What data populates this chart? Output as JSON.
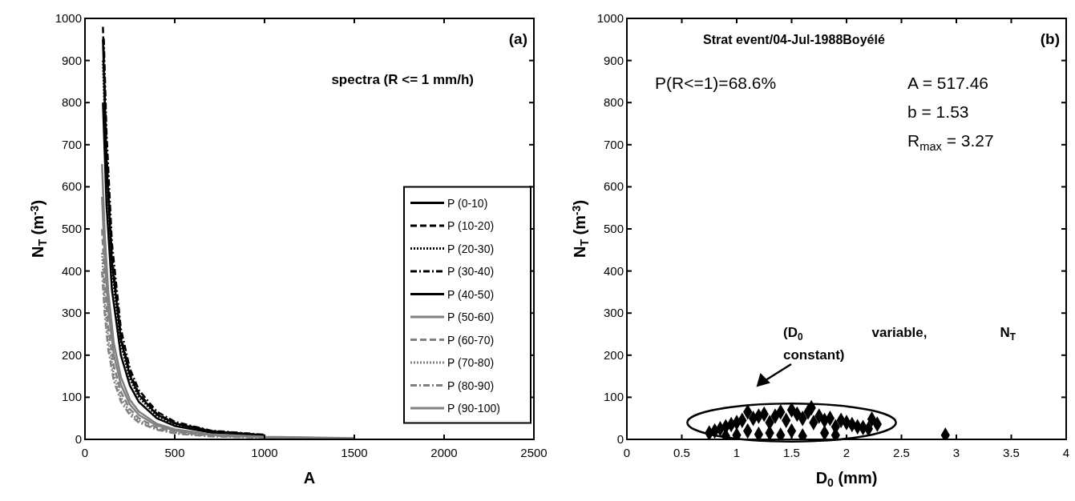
{
  "chart_data": [
    {
      "type": "line",
      "title": "spectra (R <= 1 mm/h)",
      "xlabel": "A",
      "ylabel": "N$_{T}$ (m$^{-3}$)",
      "annotations": [
        "(a)"
      ],
      "xlim": [
        0,
        2500
      ],
      "xticks": [
        0,
        500,
        1000,
        1500,
        2000,
        2500
      ],
      "ylim": [
        0,
        1000
      ],
      "yticks": [
        0,
        100,
        200,
        300,
        400,
        500,
        600,
        700,
        800,
        900,
        1000
      ],
      "grid": false,
      "legend": "right",
      "series": [
        {
          "name": "P (0-10)",
          "color": "#000000",
          "line_style": "solid",
          "x": [
            100,
            120,
            150,
            200,
            250,
            300,
            400,
            500,
            700,
            1000
          ],
          "values": [
            950,
            660,
            422,
            238,
            152,
            106,
            59,
            38,
            19,
            10
          ]
        },
        {
          "name": "P (10-20)",
          "color": "#000000",
          "line_style": "dashed",
          "x": [
            100,
            120,
            150,
            200,
            250,
            300,
            400,
            500,
            700,
            1000
          ],
          "values": [
            980,
            681,
            436,
            245,
            157,
            109,
            61,
            39,
            20,
            10
          ]
        },
        {
          "name": "P (20-30)",
          "color": "#000000",
          "line_style": "dotted",
          "x": [
            100,
            120,
            150,
            200,
            250,
            300,
            400,
            500,
            700,
            1000
          ],
          "values": [
            900,
            625,
            400,
            225,
            144,
            100,
            56,
            36,
            18,
            9
          ]
        },
        {
          "name": "P (30-40)",
          "color": "#000000",
          "line_style": "dashdot",
          "x": [
            105,
            120,
            150,
            200,
            250,
            300,
            400,
            500,
            700,
            1000
          ],
          "values": [
            952,
            729,
            467,
            263,
            168,
            117,
            66,
            42,
            21,
            11
          ]
        },
        {
          "name": "P (40-50)",
          "color": "#000000",
          "line_style": "solid",
          "x": [
            100,
            120,
            150,
            200,
            250,
            300,
            400,
            500,
            700,
            1000
          ],
          "values": [
            800,
            556,
            356,
            200,
            128,
            89,
            50,
            32,
            16,
            8
          ]
        },
        {
          "name": "P (50-60)",
          "color": "#808080",
          "line_style": "solid",
          "x": [
            95,
            110,
            130,
            160,
            200,
            250,
            300,
            400,
            500,
            700,
            1000,
            1500
          ],
          "values": [
            654,
            488,
            349,
            230,
            148,
            94,
            66,
            37,
            24,
            12,
            6,
            3
          ]
        },
        {
          "name": "P (60-70)",
          "color": "#808080",
          "line_style": "dashed",
          "x": [
            95,
            110,
            130,
            160,
            200,
            250,
            300,
            400,
            500,
            700,
            1000,
            1300
          ],
          "values": [
            499,
            372,
            266,
            176,
            113,
            72,
            50,
            28,
            18,
            9,
            5,
            3
          ]
        },
        {
          "name": "P (70-80)",
          "color": "#808080",
          "line_style": "dotted",
          "x": [
            95,
            110,
            130,
            160,
            200,
            250,
            300,
            400,
            500,
            700,
            1000,
            1250
          ],
          "values": [
            443,
            331,
            237,
            156,
            100,
            64,
            44,
            25,
            16,
            8,
            4,
            3
          ]
        },
        {
          "name": "P (80-90)",
          "color": "#808080",
          "line_style": "dashdot",
          "x": [
            95,
            110,
            130,
            160,
            200,
            250,
            300,
            400,
            500,
            700,
            1000,
            1200
          ],
          "values": [
            399,
            298,
            213,
            141,
            90,
            58,
            40,
            23,
            14,
            7,
            4,
            3
          ]
        },
        {
          "name": "P (90-100)",
          "color": "#808080",
          "line_style": "solid",
          "x": [
            95,
            110,
            130,
            160,
            200,
            250,
            300,
            400,
            500,
            700,
            1000,
            1500
          ],
          "values": [
            576,
            430,
            308,
            203,
            130,
            83,
            58,
            33,
            21,
            11,
            5,
            2
          ]
        }
      ]
    },
    {
      "type": "scatter",
      "title": "Strat event/04-Jul-1988Boyélé",
      "xlabel": "D$_{0}$ (mm)",
      "ylabel": "N$_{T}$ (m$^{-3}$)",
      "annotations": [
        "(b)",
        "P(R<=1)=68.6%",
        "A = 517.46",
        "b = 1.53",
        "R$_{max}$ = 3.27",
        "(D$_{0}$ variable, N$_{T}$ constant)"
      ],
      "xlim": [
        0,
        4
      ],
      "xticks": [
        0,
        0.5,
        1,
        1.5,
        2,
        2.5,
        3,
        3.5,
        4
      ],
      "ylim": [
        0,
        1000
      ],
      "yticks": [
        0,
        100,
        200,
        300,
        400,
        500,
        600,
        700,
        800,
        900,
        1000
      ],
      "grid": false,
      "marker": "diamond",
      "series": [
        {
          "color": "#000000",
          "x": [
            0.75,
            0.8,
            0.85,
            0.9,
            0.95,
            1.0,
            1.05,
            1.1,
            1.1,
            1.15,
            1.2,
            1.25,
            1.3,
            1.3,
            1.35,
            1.4,
            1.45,
            1.5,
            1.5,
            1.55,
            1.6,
            1.65,
            1.68,
            1.7,
            1.75,
            1.8,
            1.85,
            1.9,
            1.95,
            2.0,
            2.05,
            2.1,
            2.15,
            2.2,
            2.23,
            2.28,
            2.9,
            0.9,
            1.0,
            1.2,
            1.4,
            1.6,
            1.8,
            1.9
          ],
          "values": [
            15,
            20,
            25,
            30,
            35,
            40,
            45,
            65,
            20,
            50,
            55,
            60,
            40,
            15,
            55,
            65,
            45,
            70,
            20,
            60,
            50,
            65,
            75,
            40,
            55,
            45,
            50,
            30,
            45,
            40,
            35,
            30,
            28,
            25,
            48,
            36,
            10,
            8,
            10,
            12,
            10,
            8,
            15,
            10
          ]
        }
      ]
    }
  ]
}
